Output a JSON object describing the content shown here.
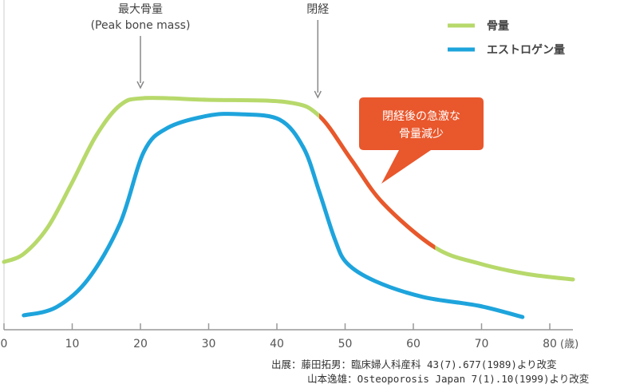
{
  "chart_data": {
    "type": "line",
    "title": "",
    "xlabel": "",
    "x_unit_label": "(歳)",
    "ylabel": "",
    "xlim": [
      0,
      84
    ],
    "ylim": [
      0,
      100
    ],
    "y_ticks_shown": false,
    "grid": false,
    "x_ticks": [
      0,
      10,
      20,
      30,
      40,
      50,
      60,
      70,
      80
    ],
    "x_tick_labels": [
      "0",
      "10",
      "20",
      "30",
      "40",
      "50",
      "60",
      "70",
      "80"
    ],
    "legend": {
      "placement": "top-right",
      "entries": [
        {
          "label": "骨量",
          "color": "#b7d96b"
        },
        {
          "label": "エストロゲン量",
          "color": "#1ea4dc"
        }
      ]
    },
    "series": [
      {
        "name": "骨量",
        "color": "#b7d96b",
        "highlight_color": "#e9572c",
        "highlight_range": [
          46.2,
          63.2
        ],
        "x": [
          0,
          2.9,
          6.4,
          9.9,
          13.5,
          17,
          20.5,
          29.8,
          41.5,
          46.2,
          50.9,
          55.6,
          63.2,
          69.6,
          76.6,
          83.4
        ],
        "y": [
          28.3,
          31.7,
          42.7,
          61,
          81,
          93.7,
          96.7,
          96,
          95,
          89.3,
          71,
          52.7,
          34.3,
          27.7,
          23.3,
          21
        ]
      },
      {
        "name": "エストロゲン量",
        "color": "#1ea4dc",
        "x": [
          2.9,
          7.6,
          12.3,
          17,
          20.5,
          24,
          29.8,
          34.5,
          40.4,
          43.9,
          46.2,
          48.5,
          50.3,
          54.4,
          61.4,
          69.6,
          76
        ],
        "y": [
          6,
          9.3,
          21,
          44.3,
          74.3,
          84.3,
          89.3,
          90,
          87.7,
          76,
          57.7,
          37.7,
          27.7,
          20.3,
          13.7,
          10,
          5.3
        ]
      }
    ],
    "annotations": [
      {
        "x": 20,
        "lines": [
          "最大骨量",
          "(Peak bone mass)"
        ]
      },
      {
        "x": 46,
        "lines": [
          "閉経"
        ]
      },
      {
        "callout": [
          "閉経後の急激な",
          "骨量減少"
        ],
        "color": "#e9572c"
      }
    ]
  },
  "source": {
    "line1": "出展：藤田拓男：臨床婦人科産科 43(7).677(1989)より改変",
    "line2": "      山本逸雄：Osteoporosis Japan 7(1).10(1999)より改変"
  }
}
